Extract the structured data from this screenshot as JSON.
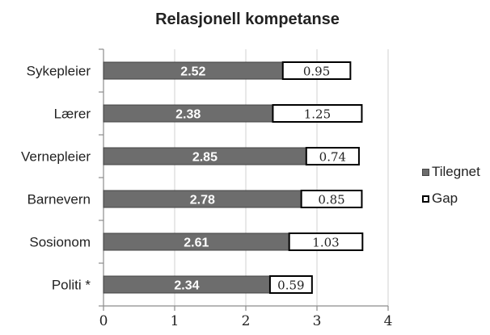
{
  "chart_data": {
    "type": "bar",
    "orientation": "horizontal",
    "stacked": true,
    "title": "Relasjonell kompetanse",
    "categories": [
      "Sykepleier",
      "Lærer",
      "Vernepleier",
      "Barnevern",
      "Sosionom",
      "Politi *"
    ],
    "series": [
      {
        "name": "Tilegnet",
        "values": [
          2.52,
          2.38,
          2.85,
          2.78,
          2.61,
          2.34
        ],
        "labels": [
          "2.52",
          "2.38",
          "2.85",
          "2.78",
          "2.61",
          "2.34"
        ]
      },
      {
        "name": "Gap",
        "values": [
          0.95,
          1.25,
          0.74,
          0.85,
          1.03,
          0.59
        ],
        "labels": [
          "0.95",
          "1.25",
          "0.74",
          "0.85",
          "1.03",
          "0.59"
        ]
      }
    ],
    "xlim": [
      0,
      4
    ],
    "xticks": [
      "0",
      "1",
      "2",
      "3",
      "4"
    ],
    "grid": "vertical",
    "legend_position": "right",
    "colors": {
      "tilegnet_fill": "#6d6d6d",
      "tilegnet_stroke": "#444444",
      "gap_fill": "#ffffff",
      "gap_stroke": "#000000",
      "grid": "#d9d9d9",
      "axis": "#8c8c8c",
      "text": "#222222",
      "bar_label_light": "#ffffff",
      "bar_label_dark": "#222222"
    }
  }
}
